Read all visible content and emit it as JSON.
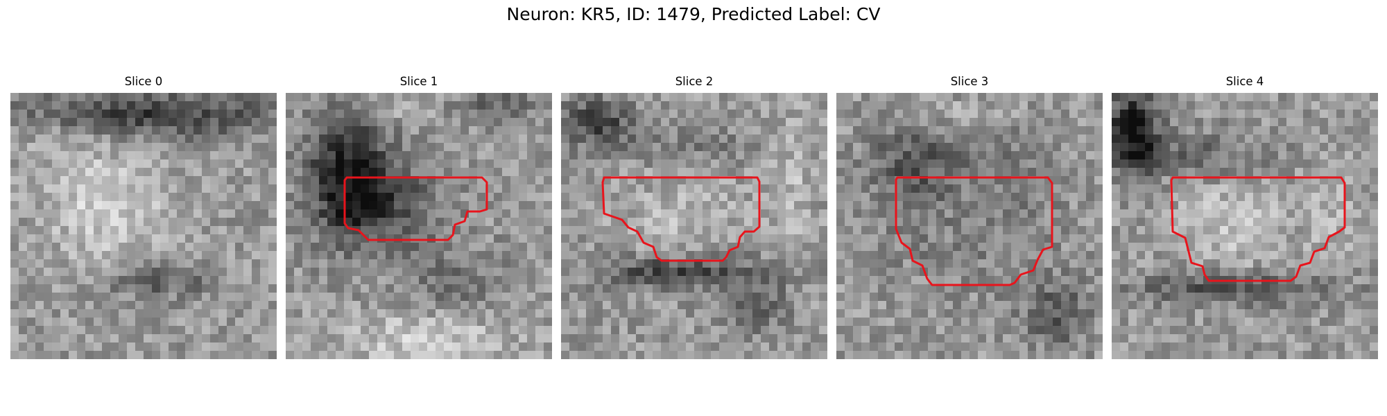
{
  "figure": {
    "title": "Neuron: KR5, ID: 1479, Predicted Label: CV",
    "contour_color": "#e8141c"
  },
  "panels": [
    {
      "title": "Slice 0",
      "has_contour": false
    },
    {
      "title": "Slice 1",
      "has_contour": true
    },
    {
      "title": "Slice 2",
      "has_contour": true
    },
    {
      "title": "Slice 3",
      "has_contour": true
    },
    {
      "title": "Slice 4",
      "has_contour": true
    }
  ]
}
